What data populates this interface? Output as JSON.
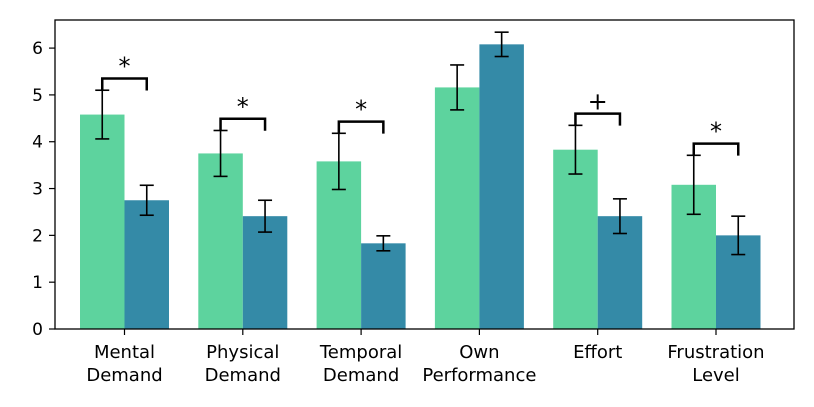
{
  "chart_data": {
    "type": "bar",
    "categories": [
      [
        "Mental",
        "Demand"
      ],
      [
        "Physical",
        "Demand"
      ],
      [
        "Temporal",
        "Demand"
      ],
      [
        "Own",
        "Performance"
      ],
      [
        "Effort"
      ],
      [
        "Frustration",
        "Level"
      ]
    ],
    "series": [
      {
        "color": "#5dd39e",
        "values": [
          4.58,
          3.75,
          3.58,
          5.16,
          3.83,
          3.08
        ],
        "errors": [
          0.52,
          0.49,
          0.6,
          0.48,
          0.52,
          0.63
        ]
      },
      {
        "color": "#348aa7",
        "values": [
          2.75,
          2.41,
          1.83,
          6.08,
          2.41,
          2.0
        ],
        "errors": [
          0.32,
          0.34,
          0.16,
          0.26,
          0.37,
          0.41
        ]
      }
    ],
    "significance": [
      "*",
      "*",
      "*",
      "",
      "+",
      "*"
    ],
    "ylim": [
      0,
      6.6
    ],
    "yticks": [
      0,
      1,
      2,
      3,
      4,
      5,
      6
    ],
    "title": "",
    "xlabel": "",
    "ylabel": "",
    "grid": false,
    "legend": "none"
  }
}
